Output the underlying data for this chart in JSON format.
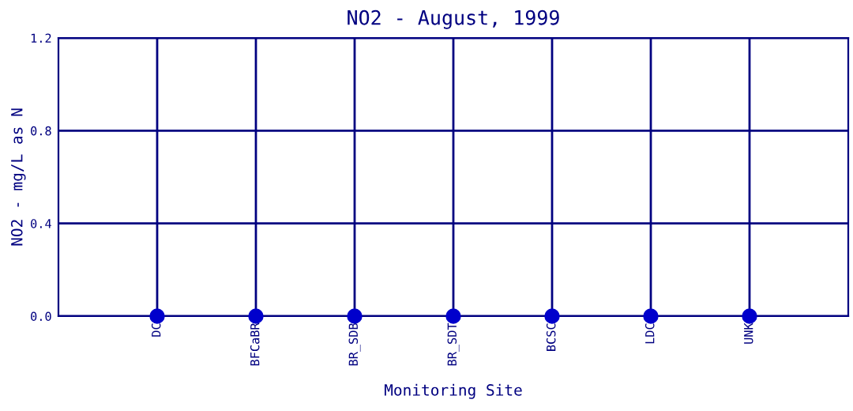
{
  "chart_data": {
    "type": "scatter",
    "title": "NO2 - August, 1999",
    "xlabel": "Monitoring Site",
    "ylabel": "NO2 - mg/L as N",
    "categories": [
      "DC",
      "BFCaBR",
      "BR_SDB",
      "BR_SDT",
      "BCSC",
      "LDC",
      "UNK"
    ],
    "series": [
      {
        "color": "#0000cc",
        "values": [
          0,
          0,
          0,
          0,
          0,
          0,
          0
        ]
      }
    ],
    "ylim": [
      0,
      1.2
    ],
    "yticks": [
      {
        "value": 0,
        "label": "0.0"
      },
      0.4,
      0.8,
      1.2
    ],
    "grid": true,
    "marker": "circle",
    "legend": false
  }
}
